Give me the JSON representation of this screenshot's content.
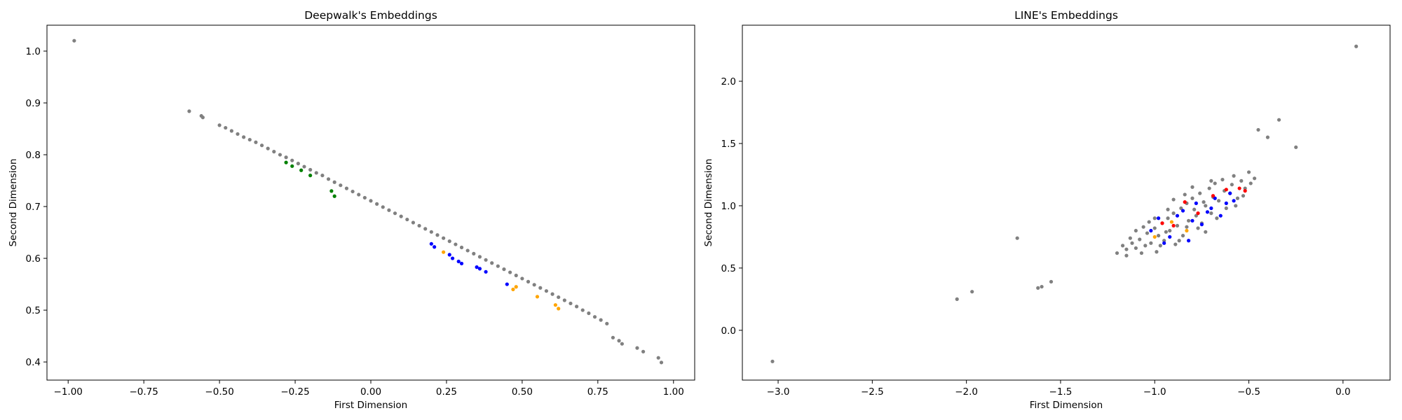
{
  "chart_data": [
    {
      "type": "scatter",
      "title": "Deepwalk's Embeddings",
      "xlabel": "First Dimension",
      "ylabel": "Second Dimension",
      "xlim": [
        -1.07,
        1.07
      ],
      "ylim": [
        0.365,
        1.05
      ],
      "xticks": [
        -1.0,
        -0.75,
        -0.5,
        -0.25,
        0.0,
        0.25,
        0.5,
        0.75,
        1.0
      ],
      "xtick_labels": [
        "−1.00",
        "−0.75",
        "−0.50",
        "−0.25",
        "0.00",
        "0.25",
        "0.50",
        "0.75",
        "1.00"
      ],
      "yticks": [
        0.4,
        0.5,
        0.6,
        0.7,
        0.8,
        0.9,
        1.0
      ],
      "ytick_labels": [
        "0.4",
        "0.5",
        "0.6",
        "0.7",
        "0.8",
        "0.9",
        "1.0"
      ],
      "grid": false,
      "colors": {
        "gray": "#808080",
        "blue": "#0000ff",
        "green": "#008000",
        "orange": "#ffa500",
        "red": "#ff0000"
      },
      "series": [
        {
          "color": "#808080",
          "points": [
            [
              -0.98,
              1.02
            ],
            [
              -0.6,
              0.884
            ],
            [
              -0.56,
              0.875
            ],
            [
              -0.555,
              0.872
            ],
            [
              -0.5,
              0.857
            ],
            [
              -0.48,
              0.852
            ],
            [
              -0.46,
              0.846
            ],
            [
              -0.44,
              0.84
            ],
            [
              -0.42,
              0.834
            ],
            [
              -0.4,
              0.829
            ],
            [
              -0.38,
              0.824
            ],
            [
              -0.36,
              0.818
            ],
            [
              -0.34,
              0.812
            ],
            [
              -0.32,
              0.806
            ],
            [
              -0.3,
              0.8
            ],
            [
              -0.28,
              0.795
            ],
            [
              -0.26,
              0.789
            ],
            [
              -0.24,
              0.783
            ],
            [
              -0.22,
              0.777
            ],
            [
              -0.2,
              0.771
            ],
            [
              -0.18,
              0.765
            ],
            [
              -0.16,
              0.76
            ],
            [
              -0.14,
              0.753
            ],
            [
              -0.12,
              0.747
            ],
            [
              -0.1,
              0.741
            ],
            [
              -0.08,
              0.735
            ],
            [
              -0.06,
              0.729
            ],
            [
              -0.04,
              0.723
            ],
            [
              -0.02,
              0.717
            ],
            [
              0.0,
              0.711
            ],
            [
              0.02,
              0.705
            ],
            [
              0.04,
              0.699
            ],
            [
              0.06,
              0.693
            ],
            [
              0.08,
              0.687
            ],
            [
              0.1,
              0.681
            ],
            [
              0.12,
              0.675
            ],
            [
              0.14,
              0.669
            ],
            [
              0.16,
              0.663
            ],
            [
              0.18,
              0.657
            ],
            [
              0.2,
              0.651
            ],
            [
              0.22,
              0.645
            ],
            [
              0.24,
              0.639
            ],
            [
              0.26,
              0.633
            ],
            [
              0.28,
              0.627
            ],
            [
              0.3,
              0.621
            ],
            [
              0.32,
              0.615
            ],
            [
              0.34,
              0.609
            ],
            [
              0.36,
              0.603
            ],
            [
              0.38,
              0.597
            ],
            [
              0.4,
              0.591
            ],
            [
              0.42,
              0.585
            ],
            [
              0.44,
              0.579
            ],
            [
              0.46,
              0.573
            ],
            [
              0.48,
              0.567
            ],
            [
              0.5,
              0.561
            ],
            [
              0.52,
              0.555
            ],
            [
              0.54,
              0.549
            ],
            [
              0.56,
              0.543
            ],
            [
              0.58,
              0.537
            ],
            [
              0.6,
              0.531
            ],
            [
              0.62,
              0.525
            ],
            [
              0.64,
              0.519
            ],
            [
              0.66,
              0.513
            ],
            [
              0.68,
              0.507
            ],
            [
              0.7,
              0.5
            ],
            [
              0.72,
              0.494
            ],
            [
              0.74,
              0.487
            ],
            [
              0.76,
              0.481
            ],
            [
              0.78,
              0.474
            ],
            [
              0.8,
              0.447
            ],
            [
              0.82,
              0.441
            ],
            [
              0.83,
              0.435
            ],
            [
              0.88,
              0.427
            ],
            [
              0.9,
              0.42
            ],
            [
              0.95,
              0.408
            ],
            [
              0.96,
              0.399
            ]
          ]
        },
        {
          "color": "#008000",
          "points": [
            [
              -0.28,
              0.785
            ],
            [
              -0.26,
              0.778
            ],
            [
              -0.23,
              0.77
            ],
            [
              -0.2,
              0.76
            ],
            [
              -0.13,
              0.73
            ],
            [
              -0.12,
              0.72
            ]
          ]
        },
        {
          "color": "#0000ff",
          "points": [
            [
              0.2,
              0.628
            ],
            [
              0.21,
              0.622
            ],
            [
              0.26,
              0.607
            ],
            [
              0.27,
              0.6
            ],
            [
              0.29,
              0.594
            ],
            [
              0.3,
              0.59
            ],
            [
              0.35,
              0.583
            ],
            [
              0.36,
              0.58
            ],
            [
              0.38,
              0.574
            ],
            [
              0.45,
              0.55
            ]
          ]
        },
        {
          "color": "#ffa500",
          "points": [
            [
              0.24,
              0.612
            ],
            [
              0.47,
              0.54
            ],
            [
              0.48,
              0.545
            ],
            [
              0.55,
              0.526
            ],
            [
              0.61,
              0.51
            ],
            [
              0.62,
              0.503
            ]
          ]
        }
      ]
    },
    {
      "type": "scatter",
      "title": "LINE's Embeddings",
      "xlabel": "First Dimension",
      "ylabel": "Second Dimension",
      "xlim": [
        -3.19,
        0.25
      ],
      "ylim": [
        -0.4,
        2.45
      ],
      "xticks": [
        -3.0,
        -2.5,
        -2.0,
        -1.5,
        -1.0,
        -0.5,
        0.0
      ],
      "xtick_labels": [
        "−3.0",
        "−2.5",
        "−2.0",
        "−1.5",
        "−1.0",
        "−0.5",
        "0.0"
      ],
      "yticks": [
        0.0,
        0.5,
        1.0,
        1.5,
        2.0
      ],
      "ytick_labels": [
        "0.0",
        "0.5",
        "1.0",
        "1.5",
        "2.0"
      ],
      "grid": false,
      "colors": {
        "gray": "#808080",
        "blue": "#0000ff",
        "green": "#008000",
        "orange": "#ffa500",
        "red": "#ff0000"
      },
      "series": [
        {
          "color": "#808080",
          "points": [
            [
              -3.03,
              -0.25
            ],
            [
              -2.05,
              0.25
            ],
            [
              -1.97,
              0.31
            ],
            [
              -1.73,
              0.74
            ],
            [
              -1.62,
              0.34
            ],
            [
              -1.6,
              0.35
            ],
            [
              -1.55,
              0.39
            ],
            [
              -0.45,
              1.61
            ],
            [
              -0.4,
              1.55
            ],
            [
              -0.34,
              1.69
            ],
            [
              -0.25,
              1.47
            ],
            [
              0.07,
              2.28
            ],
            [
              -1.15,
              0.65
            ],
            [
              -1.15,
              0.6
            ],
            [
              -1.12,
              0.7
            ],
            [
              -1.1,
              0.66
            ],
            [
              -1.08,
              0.73
            ],
            [
              -1.05,
              0.68
            ],
            [
              -1.04,
              0.78
            ],
            [
              -1.02,
              0.7
            ],
            [
              -1.0,
              0.82
            ],
            [
              -0.98,
              0.76
            ],
            [
              -0.96,
              0.86
            ],
            [
              -0.95,
              0.72
            ],
            [
              -0.93,
              0.9
            ],
            [
              -0.92,
              0.8
            ],
            [
              -0.9,
              0.94
            ],
            [
              -0.88,
              0.84
            ],
            [
              -0.86,
              0.98
            ],
            [
              -0.85,
              0.76
            ],
            [
              -0.83,
              1.02
            ],
            [
              -0.82,
              0.88
            ],
            [
              -0.8,
              1.06
            ],
            [
              -0.78,
              0.92
            ],
            [
              -0.76,
              1.1
            ],
            [
              -0.75,
              0.86
            ],
            [
              -0.73,
              1.0
            ],
            [
              -0.71,
              1.14
            ],
            [
              -0.7,
              0.94
            ],
            [
              -0.68,
              1.18
            ],
            [
              -0.66,
              1.04
            ],
            [
              -0.64,
              1.21
            ],
            [
              -0.62,
              0.98
            ],
            [
              -0.6,
              1.1
            ],
            [
              -0.58,
              1.24
            ],
            [
              -0.56,
              1.06
            ],
            [
              -0.54,
              1.2
            ],
            [
              -0.52,
              1.14
            ],
            [
              -0.5,
              1.27
            ],
            [
              -0.49,
              1.18
            ],
            [
              -1.07,
              0.62
            ],
            [
              -0.97,
              0.68
            ],
            [
              -0.87,
              0.72
            ],
            [
              -0.77,
              0.82
            ],
            [
              -0.67,
              0.9
            ],
            [
              -0.57,
              1.0
            ],
            [
              -1.1,
              0.8
            ],
            [
              -1.0,
              0.9
            ],
            [
              -0.9,
              1.05
            ],
            [
              -0.8,
              1.15
            ],
            [
              -0.7,
              1.2
            ],
            [
              -1.17,
              0.68
            ],
            [
              -1.2,
              0.62
            ],
            [
              -1.03,
              0.87
            ],
            [
              -0.93,
              0.97
            ],
            [
              -0.83,
              0.83
            ],
            [
              -0.73,
              0.79
            ],
            [
              -0.63,
              1.12
            ],
            [
              -0.53,
              1.08
            ],
            [
              -0.47,
              1.22
            ],
            [
              -0.99,
              0.63
            ],
            [
              -0.89,
              0.69
            ],
            [
              -0.79,
              0.97
            ],
            [
              -0.69,
              1.07
            ],
            [
              -0.59,
              1.17
            ],
            [
              -1.13,
              0.74
            ],
            [
              -1.06,
              0.83
            ],
            [
              -0.94,
              0.79
            ],
            [
              -0.84,
              1.09
            ],
            [
              -0.74,
              1.03
            ]
          ]
        },
        {
          "color": "#0000ff",
          "points": [
            [
              -1.02,
              0.8
            ],
            [
              -0.98,
              0.9
            ],
            [
              -0.95,
              0.7
            ],
            [
              -0.92,
              0.75
            ],
            [
              -0.88,
              0.92
            ],
            [
              -0.85,
              0.96
            ],
            [
              -0.82,
              0.72
            ],
            [
              -0.8,
              0.88
            ],
            [
              -0.78,
              1.02
            ],
            [
              -0.75,
              0.85
            ],
            [
              -0.72,
              0.95
            ],
            [
              -0.7,
              0.98
            ],
            [
              -0.68,
              1.06
            ],
            [
              -0.65,
              0.92
            ],
            [
              -0.62,
              1.02
            ],
            [
              -0.6,
              1.1
            ],
            [
              -0.58,
              1.04
            ]
          ]
        },
        {
          "color": "#ff0000",
          "points": [
            [
              -0.96,
              0.86
            ],
            [
              -0.9,
              0.84
            ],
            [
              -0.84,
              1.03
            ],
            [
              -0.77,
              0.94
            ],
            [
              -0.69,
              1.08
            ],
            [
              -0.62,
              1.13
            ],
            [
              -0.55,
              1.14
            ],
            [
              -0.52,
              1.12
            ]
          ]
        },
        {
          "color": "#ffa500",
          "points": [
            [
              -1.0,
              0.75
            ],
            [
              -0.91,
              0.87
            ],
            [
              -0.83,
              0.8
            ]
          ]
        }
      ]
    }
  ]
}
